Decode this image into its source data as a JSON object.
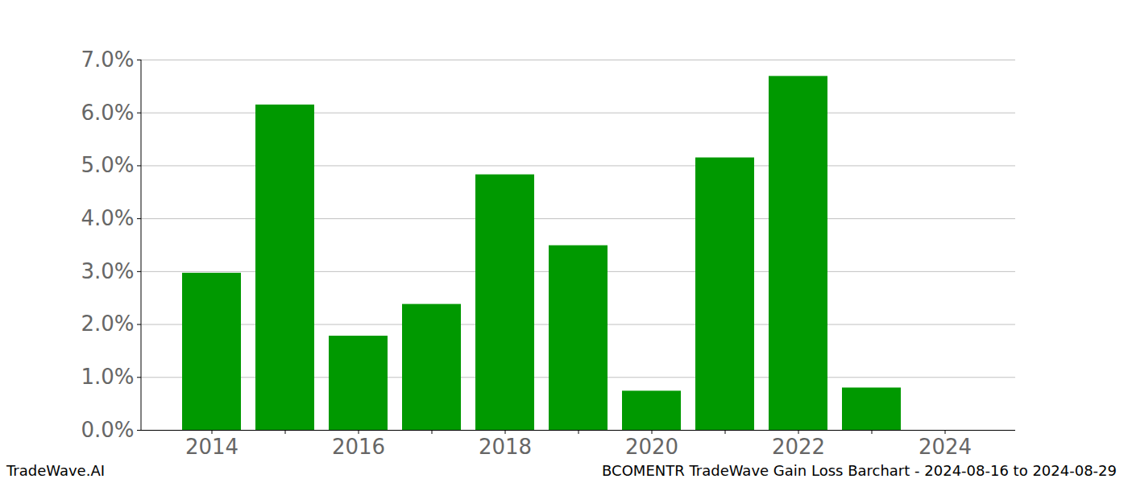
{
  "chart_data": {
    "type": "bar",
    "title": "BCOMENTR TradeWave Gain Loss Barchart - 2024-08-16 to 2024-08-29",
    "annotations": [
      "TradeWave.AI"
    ],
    "categories": [
      "2014",
      null,
      "2016",
      null,
      "2018",
      null,
      "2020",
      null,
      "2022",
      null,
      "2024"
    ],
    "values": [
      2.97,
      6.15,
      1.78,
      2.38,
      4.83,
      3.49,
      0.74,
      5.15,
      6.69,
      0.8,
      null
    ],
    "color": "#009900",
    "ylim": [
      0,
      7
    ],
    "yticks": [
      {
        "value": 0,
        "label": "0.0%"
      },
      {
        "value": 1,
        "label": "1.0%"
      },
      {
        "value": 2,
        "label": "2.0%"
      },
      {
        "value": 3,
        "label": "3.0%"
      },
      {
        "value": 4,
        "label": "4.0%"
      },
      {
        "value": 5,
        "label": "5.0%"
      },
      {
        "value": 6,
        "label": "6.0%"
      },
      {
        "value": 7,
        "label": "7.0%"
      }
    ],
    "grid": true
  }
}
